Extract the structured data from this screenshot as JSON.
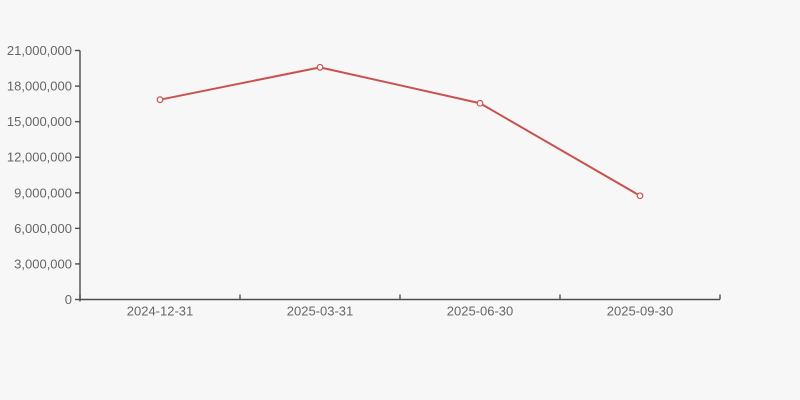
{
  "chart": {
    "background_color": "#f7f7f7",
    "axis_color": "#4e4e4e",
    "label_color": "#666666",
    "line_color": "#c7534f",
    "marker_fill_color": "#ffffff"
  },
  "chart_data": {
    "type": "line",
    "categories": [
      "2024-12-31",
      "2025-03-31",
      "2025-06-30",
      "2025-09-30"
    ],
    "values": [
      16850000,
      19580000,
      16550000,
      8750000
    ],
    "title": "",
    "xlabel": "",
    "ylabel": "",
    "ylim": [
      0,
      21000000
    ],
    "y_tick_step": 3000000,
    "y_tick_labels": [
      "0",
      "3,000,000",
      "6,000,000",
      "9,000,000",
      "12,000,000",
      "15,000,000",
      "18,000,000",
      "21,000,000"
    ],
    "grid": false,
    "legend_position": "none",
    "marker_style": "hollow-circle"
  }
}
